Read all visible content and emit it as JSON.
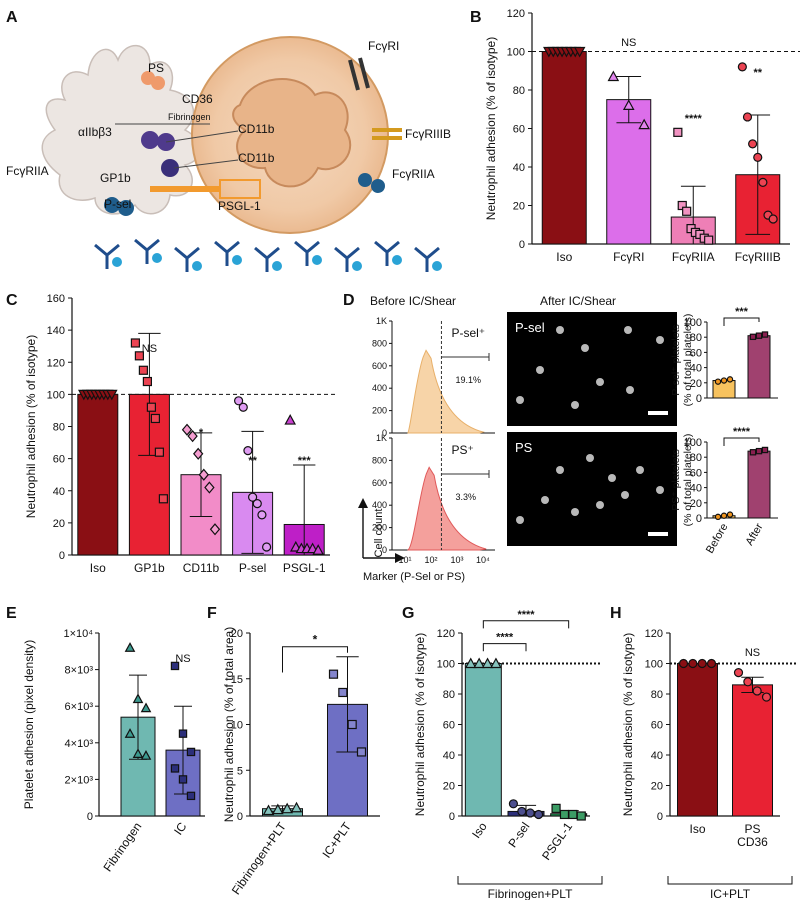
{
  "panels": {
    "A": {
      "letter": "A",
      "labels": [
        "PS",
        "CD36",
        "Fibrinogen",
        "αIIbβ3",
        "CD11b",
        "CD11b",
        "FcγRIIA",
        "GP1b",
        "P-sel",
        "PSGL-1",
        "FcγRI",
        "FcγRIIIB",
        "FcγRIIA"
      ]
    },
    "B": {
      "letter": "B",
      "chart_data": {
        "type": "bar",
        "ylabel": "Neutrophil adhesion (% of isotype)",
        "ylim": [
          0,
          120
        ],
        "yticks": [
          0,
          20,
          40,
          60,
          80,
          100,
          120
        ],
        "reference_line": 100,
        "categories": [
          "Iso",
          "FcγRI",
          "FcγRIIA",
          "FcγRIIIB"
        ],
        "values": [
          100,
          75,
          14,
          36
        ],
        "errors": [
          0,
          12,
          16,
          31
        ],
        "points": [
          [
            100,
            100,
            100,
            100,
            100,
            100,
            100,
            100
          ],
          [
            87,
            72,
            62
          ],
          [
            58,
            20,
            17,
            8,
            6,
            5,
            3,
            2
          ],
          [
            92,
            66,
            52,
            45,
            32,
            15,
            13
          ]
        ],
        "markers": [
          "triangle-down",
          "triangle",
          "square",
          "circle"
        ],
        "colors": [
          "#8a0f14",
          "#dc6eea",
          "#ee7fb6",
          "#e82233"
        ],
        "significance": [
          "",
          "NS",
          "****",
          "**"
        ]
      }
    },
    "C": {
      "letter": "C",
      "chart_data": {
        "type": "bar",
        "ylabel": "Neutrophil adhesion (% of isotype)",
        "ylim": [
          0,
          160
        ],
        "yticks": [
          0,
          20,
          40,
          60,
          80,
          100,
          120,
          140,
          160
        ],
        "reference_line": 100,
        "categories": [
          "Iso",
          "GP1b",
          "CD11b",
          "P-sel",
          "PSGL-1"
        ],
        "values": [
          100,
          100,
          50,
          39,
          19
        ],
        "errors": [
          0,
          38,
          26,
          38,
          37
        ],
        "points": [
          [
            100,
            100,
            100,
            100,
            100,
            100,
            100,
            100
          ],
          [
            132,
            124,
            115,
            108,
            92,
            85,
            64,
            35
          ],
          [
            78,
            74,
            63,
            50,
            42,
            16
          ],
          [
            96,
            92,
            65,
            36,
            32,
            25,
            5
          ],
          [
            84,
            5,
            4,
            4,
            4,
            3
          ]
        ],
        "markers": [
          "triangle-down",
          "square",
          "diamond",
          "circle",
          "triangle"
        ],
        "colors": [
          "#8a0f14",
          "#e82233",
          "#f28cc8",
          "#d98af0",
          "#be1fc7"
        ],
        "significance": [
          "",
          "NS",
          "*",
          "**",
          "***"
        ]
      }
    },
    "D": {
      "letter": "D",
      "before_title": "Before IC/Shear",
      "after_title": "After IC/Shear",
      "hist_top": {
        "gate": "P-sel⁺",
        "pct": "19.1%",
        "yticks": [
          "1K",
          "800",
          "600",
          "400",
          "200",
          "0"
        ]
      },
      "hist_bottom": {
        "gate": "PS⁺",
        "pct": "3.3%",
        "yticks": [
          "1K",
          "800",
          "600",
          "400",
          "200",
          "0"
        ]
      },
      "xticks": [
        "10¹",
        "10²",
        "10³",
        "10⁴"
      ],
      "ylabel": "Cell count",
      "xlabel": "Marker (P-Sel or PS)",
      "micro_top_label": "P-sel",
      "micro_bottom_label": "PS",
      "chart_data": [
        {
          "type": "bar",
          "ylabel": "P-sel⁺ platelets (% of total platelets)",
          "ylim": [
            0,
            100
          ],
          "yticks": [
            0,
            20,
            40,
            60,
            80,
            100
          ],
          "categories": [
            "Before",
            "After"
          ],
          "values": [
            23,
            82
          ],
          "errors": [
            2,
            4
          ],
          "colors": [
            "#f7c25e",
            "#a0416f"
          ],
          "significance": "***"
        },
        {
          "type": "bar",
          "ylabel": "PS⁺ platelets (% of total platelets)",
          "ylim": [
            0,
            100
          ],
          "yticks": [
            0,
            20,
            40,
            60,
            80,
            100
          ],
          "categories": [
            "Before",
            "After"
          ],
          "values": [
            3,
            88
          ],
          "errors": [
            1,
            3
          ],
          "colors": [
            "#f7c25e",
            "#a0416f"
          ],
          "significance": "****"
        }
      ]
    },
    "E": {
      "letter": "E",
      "chart_data": {
        "type": "bar",
        "ylabel": "Platelet adhesion (pixel density)",
        "ylim": [
          0,
          10000
        ],
        "yticks": [
          "0",
          "2×10³",
          "4×10³",
          "6×10³",
          "8×10³",
          "1×10⁴"
        ],
        "categories": [
          "Fibrinogen",
          "IC"
        ],
        "values": [
          5400,
          3600
        ],
        "errors": [
          2300,
          2400
        ],
        "points": [
          [
            9200,
            6400,
            5900,
            4500,
            3400,
            3300
          ],
          [
            8200,
            4500,
            3500,
            2600,
            2000,
            1100
          ]
        ],
        "markers": [
          "triangle",
          "square"
        ],
        "colors": [
          "#6fb8b1",
          "#6e6fc4"
        ],
        "significance": "NS"
      }
    },
    "F": {
      "letter": "F",
      "chart_data": {
        "type": "bar",
        "ylabel": "Neutrophil adhesion (% of total area)",
        "ylim": [
          0,
          20
        ],
        "yticks": [
          0,
          5,
          10,
          15,
          20
        ],
        "categories": [
          "Fibrinogen+PLT",
          "IC+PLT"
        ],
        "values": [
          0.8,
          12.2
        ],
        "errors": [
          0.3,
          5.2
        ],
        "points": [
          [
            0.6,
            0.7,
            0.8,
            0.9
          ],
          [
            15.5,
            13.5,
            10,
            7
          ]
        ],
        "markers": [
          "triangle",
          "square"
        ],
        "colors": [
          "#6fb8b1",
          "#6e6fc4"
        ],
        "significance": "*"
      }
    },
    "G": {
      "letter": "G",
      "chart_data": {
        "type": "bar",
        "ylabel": "Neutrophil adhesion (% of isotype)",
        "ylim": [
          0,
          120
        ],
        "yticks": [
          0,
          20,
          40,
          60,
          80,
          100,
          120
        ],
        "reference_line": 100,
        "categories": [
          "Iso",
          "P-sel",
          "PSGL-1"
        ],
        "values": [
          100,
          3,
          1.5
        ],
        "errors": [
          0,
          4,
          2
        ],
        "points": [
          [
            100,
            100,
            100,
            100
          ],
          [
            8,
            3,
            2,
            1
          ],
          [
            5,
            1,
            1,
            0
          ]
        ],
        "markers": [
          "triangle",
          "circle",
          "square"
        ],
        "colors": [
          "#6fb8b1",
          "#2c2f7a",
          "#1a8a4a"
        ],
        "significance": [
          "****",
          "****"
        ],
        "group_label": "Fibrinogen+PLT"
      }
    },
    "H": {
      "letter": "H",
      "chart_data": {
        "type": "bar",
        "ylabel": "Neutrophil adhesion (% of isotype)",
        "ylim": [
          0,
          120
        ],
        "yticks": [
          0,
          20,
          40,
          60,
          80,
          100,
          120
        ],
        "reference_line": 100,
        "categories": [
          "Iso",
          "PS\nCD36"
        ],
        "values": [
          100,
          86
        ],
        "errors": [
          0,
          5
        ],
        "points": [
          [
            100,
            100,
            100,
            100
          ],
          [
            94,
            88,
            82,
            78
          ]
        ],
        "markers": [
          "circle",
          "circle"
        ],
        "colors": [
          "#8a0f14",
          "#e82233"
        ],
        "significance": "NS",
        "group_label": "IC+PLT"
      }
    }
  }
}
